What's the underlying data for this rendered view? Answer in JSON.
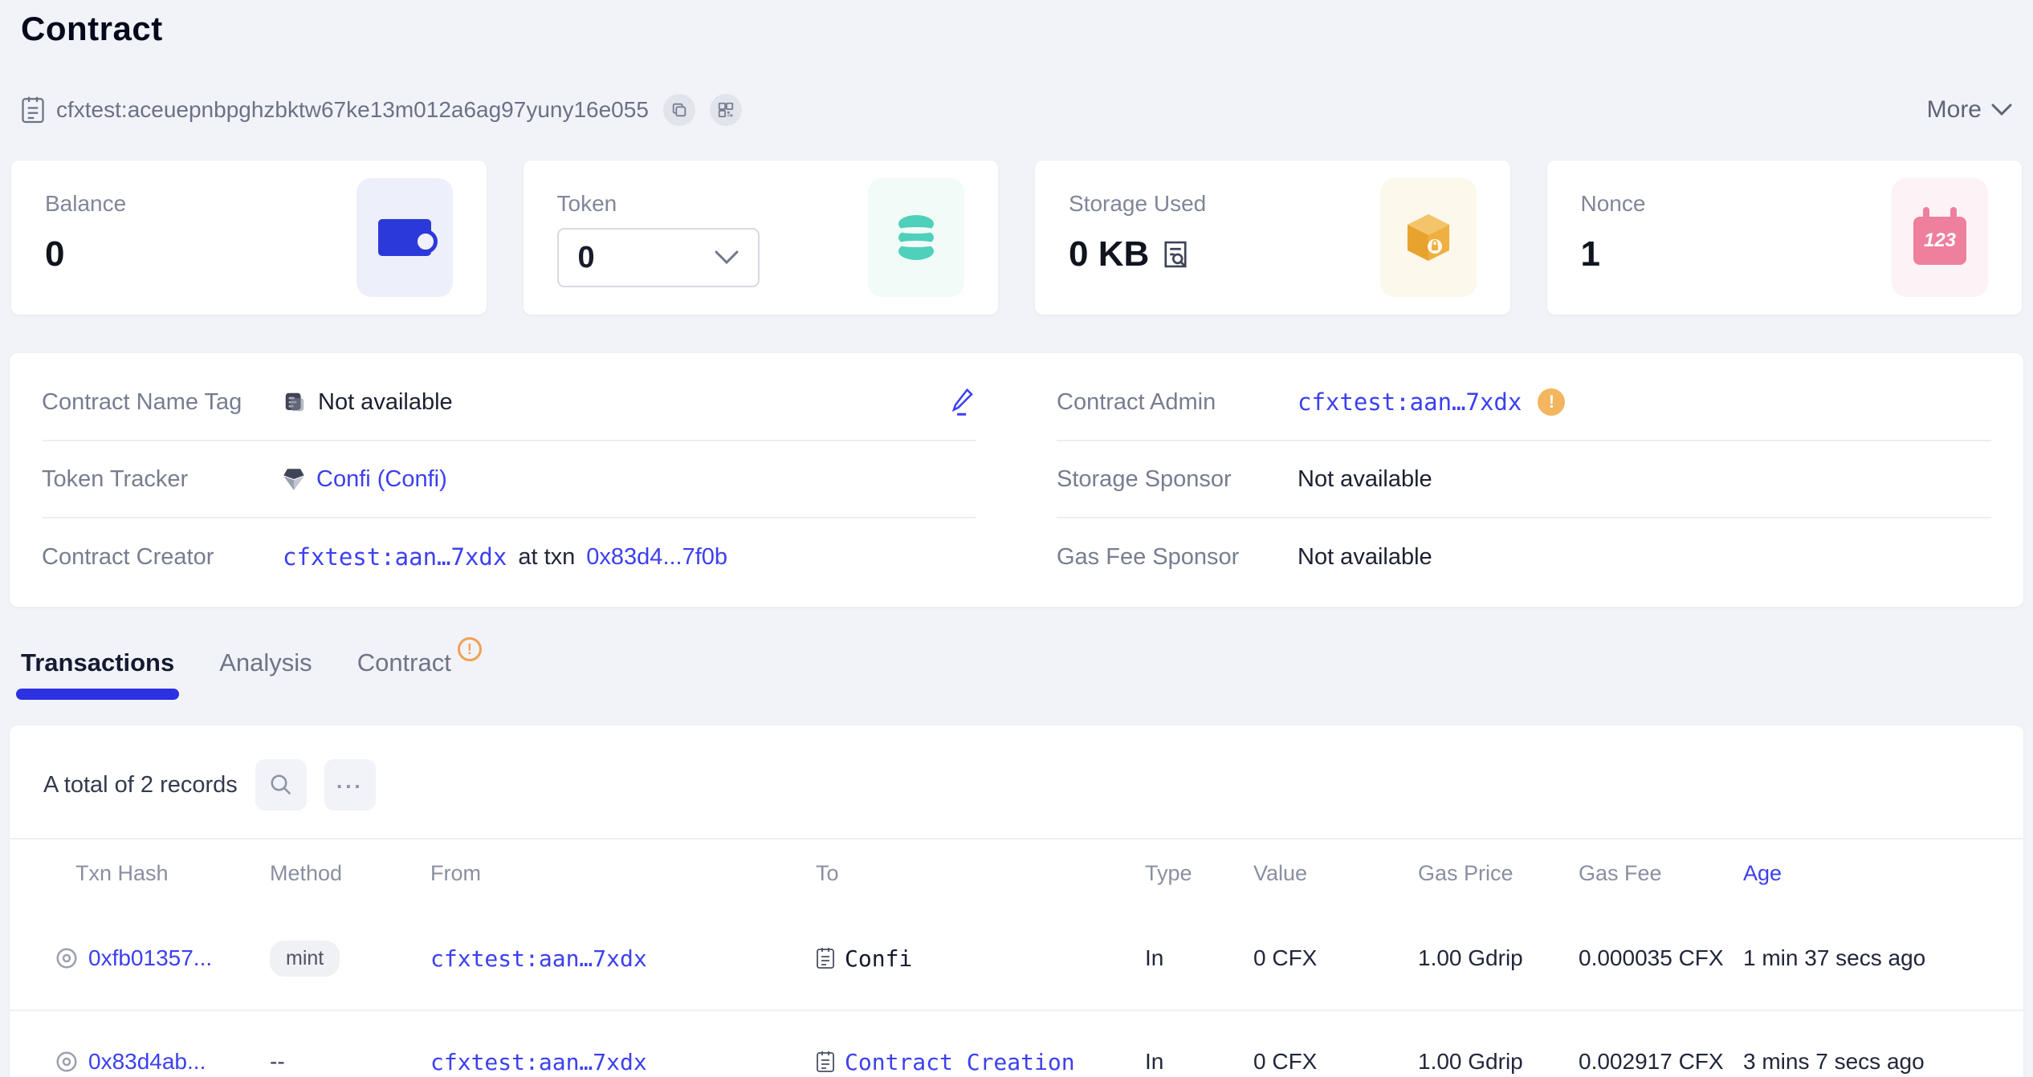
{
  "page": {
    "title": "Contract",
    "more_label": "More"
  },
  "address_bar": {
    "address": "cfxtest:aceuepnbpghzbktw67ke13m012a6ag97yuny16e055"
  },
  "stats": {
    "balance": {
      "label": "Balance",
      "value": "0"
    },
    "token": {
      "label": "Token",
      "selected": "0"
    },
    "storage": {
      "label": "Storage Used",
      "value": "0 KB"
    },
    "nonce": {
      "label": "Nonce",
      "value": "1"
    }
  },
  "info": {
    "left": [
      {
        "label": "Contract Name Tag",
        "value": "Not available"
      },
      {
        "label": "Token Tracker",
        "value": "Confi (Confi)"
      },
      {
        "label": "Contract Creator",
        "address": "cfxtest:aan…7xdx",
        "connector": "at txn",
        "txn": "0x83d4...7f0b"
      }
    ],
    "right": [
      {
        "label": "Contract Admin",
        "value": "cfxtest:aan…7xdx"
      },
      {
        "label": "Storage Sponsor",
        "value": "Not available"
      },
      {
        "label": "Gas Fee Sponsor",
        "value": "Not available"
      }
    ]
  },
  "tabs": [
    {
      "label": "Transactions",
      "active": true
    },
    {
      "label": "Analysis",
      "active": false
    },
    {
      "label": "Contract",
      "active": false,
      "warning": "!"
    }
  ],
  "table": {
    "summary": "A total of 2 records",
    "columns": [
      "Txn Hash",
      "Method",
      "From",
      "To",
      "Type",
      "Value",
      "Gas Price",
      "Gas Fee",
      "Age"
    ],
    "rows": [
      {
        "hash": "0xfb01357...",
        "method": "mint",
        "method_is_pill": true,
        "from": "cfxtest:aan…7xdx",
        "to": "Confi",
        "to_is_link": false,
        "type": "In",
        "value": "0 CFX",
        "gas_price": "1.00 Gdrip",
        "gas_fee": "0.000035 CFX",
        "age": "1 min 37 secs ago"
      },
      {
        "hash": "0x83d4ab...",
        "method": "--",
        "method_is_pill": false,
        "from": "cfxtest:aan…7xdx",
        "to": "Contract Creation",
        "to_is_link": true,
        "type": "In",
        "value": "0 CFX",
        "gas_price": "1.00 Gdrip",
        "gas_fee": "0.002917 CFX",
        "age": "3 mins 7 secs ago"
      }
    ]
  },
  "colors": {
    "accent_blue": "#3c40ee",
    "tab_underline": "#2c31e2",
    "warning_orange": "#f0a153",
    "wallet_blue": "#2c39da",
    "token_teal": "#4fd0ba",
    "storage_amber": "#efb041",
    "nonce_pink": "#ee7f9d",
    "page_bg": "#f2f3f8"
  }
}
